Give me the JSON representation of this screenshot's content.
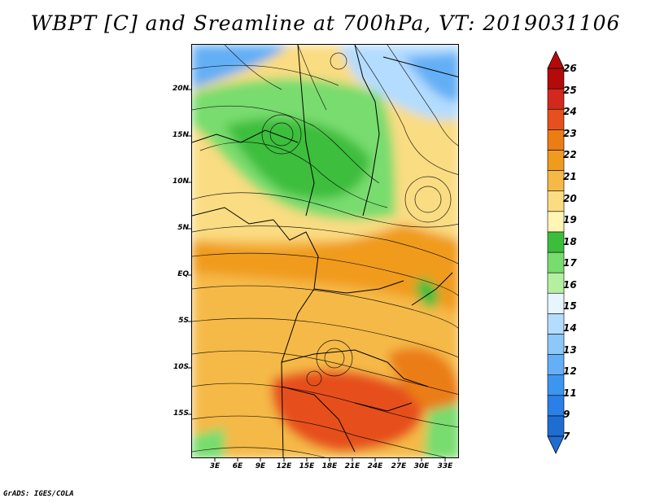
{
  "title": "WBPT [C] and Sreamline at 700hPa, VT: 2019031106",
  "credit": "GrADS: IGES/COLA",
  "lat_labels": [
    "20N",
    "15N",
    "10N",
    "5N",
    "EQ",
    "5S",
    "10S",
    "15S"
  ],
  "lon_labels": [
    "3E",
    "6E",
    "9E",
    "12E",
    "15E",
    "18E",
    "21E",
    "24E",
    "27E",
    "30E",
    "33E"
  ],
  "colorbar": {
    "labels": [
      "7",
      "9",
      "11",
      "12",
      "13",
      "14",
      "15",
      "16",
      "17",
      "18",
      "19",
      "20",
      "21",
      "22",
      "23",
      "24",
      "25",
      "26"
    ],
    "colors": [
      "#1e6ed2",
      "#2a80e6",
      "#3c96f0",
      "#64aff5",
      "#8cc8fa",
      "#b4dcff",
      "#e6f5ff",
      "#b4f0a0",
      "#78dc6e",
      "#3cbe3c",
      "#fff5b4",
      "#fadc82",
      "#f5b946",
      "#f09b1e",
      "#eb7d14",
      "#e6501e",
      "#d2281e",
      "#b40a0a"
    ]
  }
}
